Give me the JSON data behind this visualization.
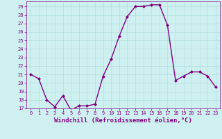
{
  "x": [
    0,
    1,
    2,
    3,
    4,
    5,
    6,
    7,
    8,
    9,
    10,
    11,
    12,
    13,
    14,
    15,
    16,
    17,
    18,
    19,
    20,
    21,
    22,
    23
  ],
  "y": [
    21,
    20.5,
    18,
    17.2,
    18.5,
    16.8,
    17.3,
    17.3,
    17.5,
    20.8,
    22.8,
    25.5,
    27.8,
    29.0,
    29.0,
    29.2,
    29.2,
    26.8,
    20.3,
    20.8,
    21.3,
    21.3,
    20.8,
    19.5
  ],
  "line_color": "#800080",
  "marker": "D",
  "marker_size": 2,
  "bg_color": "#cff0f0",
  "grid_color": "#b0dede",
  "xlabel": "Windchill (Refroidissement éolien,°C)",
  "xlabel_color": "#800080",
  "ylim": [
    17,
    29.6
  ],
  "xlim": [
    -0.5,
    23.5
  ],
  "yticks": [
    17,
    18,
    19,
    20,
    21,
    22,
    23,
    24,
    25,
    26,
    27,
    28,
    29
  ],
  "xticks": [
    0,
    1,
    2,
    3,
    4,
    5,
    6,
    7,
    8,
    9,
    10,
    11,
    12,
    13,
    14,
    15,
    16,
    17,
    18,
    19,
    20,
    21,
    22,
    23
  ],
  "tick_color": "#800080",
  "tick_labelsize": 5,
  "xlabel_fontsize": 6.5,
  "line_width": 1.0
}
